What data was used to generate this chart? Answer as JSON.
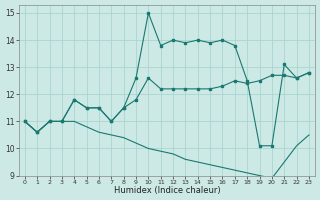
{
  "xlabel": "Humidex (Indice chaleur)",
  "background_color": "#cce9e6",
  "grid_color": "#aad4d0",
  "line_color": "#1a7870",
  "xlim": [
    -0.5,
    23.5
  ],
  "ylim": [
    9,
    15.3
  ],
  "xticks": [
    0,
    1,
    2,
    3,
    4,
    5,
    6,
    7,
    8,
    9,
    10,
    11,
    12,
    13,
    14,
    15,
    16,
    17,
    18,
    19,
    20,
    21,
    22,
    23
  ],
  "yticks": [
    9,
    10,
    11,
    12,
    13,
    14,
    15
  ],
  "series1_x": [
    0,
    1,
    2,
    3,
    4,
    5,
    6,
    7,
    8,
    9,
    10,
    11,
    12,
    13,
    14,
    15,
    16,
    17,
    18,
    19,
    20,
    21,
    22,
    23
  ],
  "series1_y": [
    11.0,
    10.6,
    11.0,
    11.0,
    11.8,
    11.5,
    11.5,
    11.0,
    11.5,
    11.8,
    12.6,
    12.2,
    12.2,
    12.2,
    12.2,
    12.2,
    12.3,
    12.5,
    12.4,
    12.5,
    12.7,
    12.7,
    12.6,
    12.8
  ],
  "series2_x": [
    0,
    1,
    2,
    3,
    4,
    5,
    6,
    7,
    8,
    9,
    10,
    11,
    12,
    13,
    14,
    15,
    16,
    17,
    18,
    19,
    20,
    21,
    22,
    23
  ],
  "series2_y": [
    11.0,
    10.6,
    11.0,
    11.0,
    11.8,
    11.5,
    11.5,
    11.0,
    11.5,
    12.6,
    15.0,
    13.8,
    14.0,
    13.9,
    14.0,
    13.9,
    14.0,
    13.8,
    12.5,
    10.1,
    10.1,
    13.1,
    12.6,
    12.8
  ],
  "series3_x": [
    0,
    1,
    2,
    3,
    4,
    5,
    6,
    7,
    8,
    9,
    10,
    11,
    12,
    13,
    14,
    15,
    16,
    17,
    18,
    19,
    20,
    21,
    22,
    23
  ],
  "series3_y": [
    11.0,
    10.6,
    11.0,
    11.0,
    11.0,
    10.8,
    10.6,
    10.5,
    10.4,
    10.2,
    10.0,
    9.9,
    9.8,
    9.6,
    9.5,
    9.4,
    9.3,
    9.2,
    9.1,
    9.0,
    8.9,
    9.5,
    10.1,
    10.5
  ]
}
